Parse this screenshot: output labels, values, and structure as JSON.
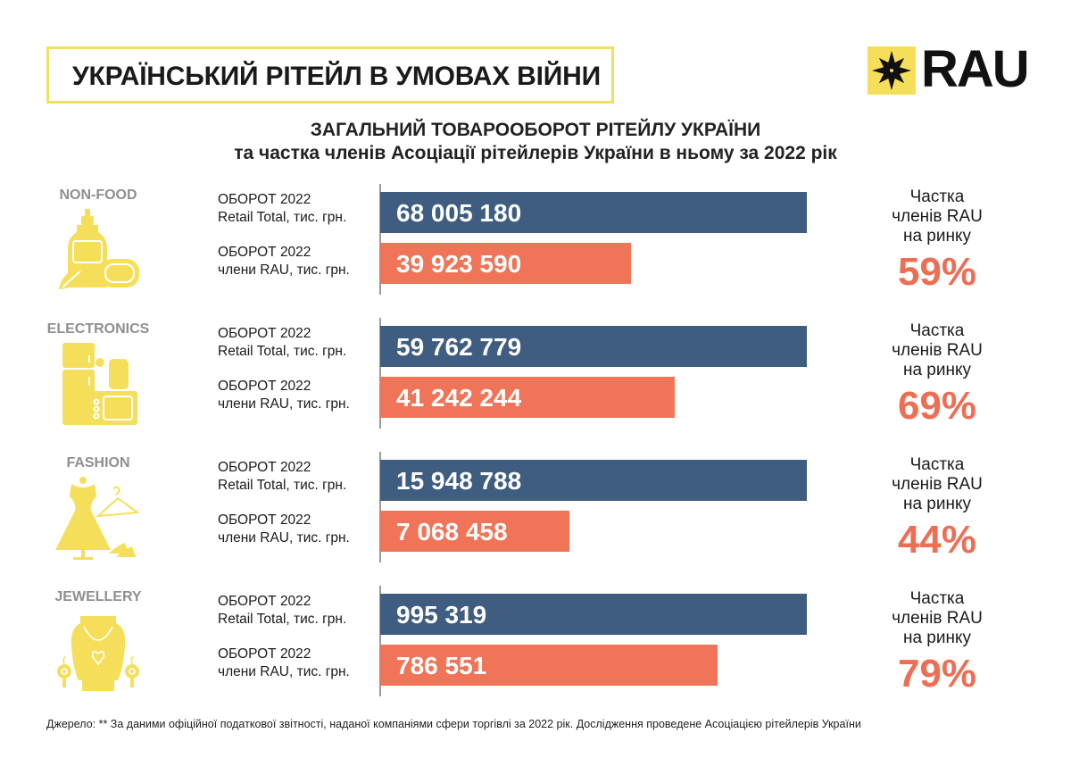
{
  "header": {
    "title": "УКРАЇНСЬКИЙ РІТЕЙЛ В УМОВАХ ВІЙНИ",
    "logo_text": "RAU"
  },
  "colors": {
    "total_bar": "#3e5d80",
    "rau_bar": "#f07457",
    "share_text": "#ee6e54",
    "icon_yellow": "#f5df5a",
    "title_border": "#f2df62"
  },
  "chart_data": {
    "type": "bar",
    "title": "ЗАГАЛЬНИЙ ТОВАРООБОРОТ РІТЕЙЛУ УКРАЇНИ",
    "subtitle": "та частка членів Асоціації рітейлерів України в ньому за 2022 рік",
    "orientation": "horizontal",
    "categories": [
      "NON-FOOD",
      "ELECTRONICS",
      "FASHION",
      "JEWELLERY"
    ],
    "series": [
      {
        "name": "ОБОРОТ 2022 Retail Total, тис. грн.",
        "label_line1": "ОБОРОТ 2022",
        "label_line2": "Retail Total, тис. грн.",
        "values": [
          68005180,
          59762779,
          15948788,
          995319
        ],
        "display": [
          "68 005 180",
          "59 762 779",
          "15 948 788",
          "995 319"
        ]
      },
      {
        "name": "ОБОРОТ 2022 члени RAU, тис. грн.",
        "label_line1": "ОБОРОТ 2022",
        "label_line2": "члени RAU, тис. грн.",
        "values": [
          39923590,
          41242244,
          7068458,
          786551
        ],
        "display": [
          "39 923 590",
          "41 242 244",
          "7 068 458",
          "786 551"
        ]
      }
    ],
    "share_label": [
      "Частка",
      "членів RAU",
      "на ринку"
    ],
    "shares": [
      "59%",
      "69%",
      "44%",
      "79%"
    ],
    "share_values": [
      59,
      69,
      44,
      79
    ]
  },
  "sections": [
    {
      "category": "NON-FOOD",
      "icon": "cleaning-products-icon"
    },
    {
      "category": "ELECTRONICS",
      "icon": "appliances-icon"
    },
    {
      "category": "FASHION",
      "icon": "dress-mannequin-icon"
    },
    {
      "category": "JEWELLERY",
      "icon": "necklace-bust-icon"
    }
  ],
  "footer": {
    "source": "Джерело: ** За даними офіційної податкової звітності, наданої компаніями сфери торгівлі за 2022 рік. Дослідження проведене Асоціацією рітейлерів України"
  }
}
